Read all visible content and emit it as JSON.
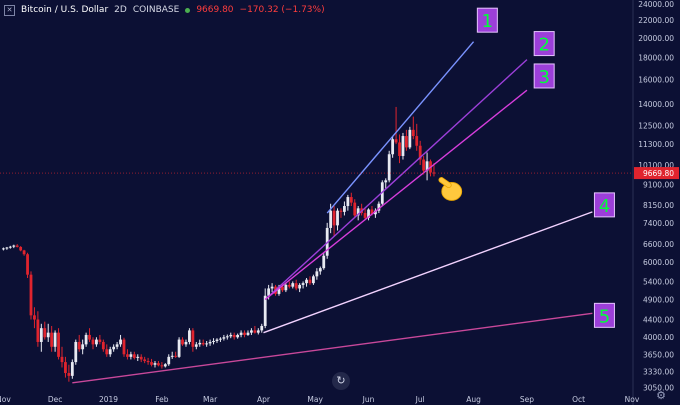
{
  "header": {
    "symbol": "Bitcoin / U.S. Dollar",
    "interval": "2D",
    "exchange": "COINBASE",
    "price": "9669.80",
    "change": "−170.32 (−1.73%)"
  },
  "colors": {
    "background": "#0c1034",
    "up": "#e8eaf2",
    "down": "#e0242e",
    "axis_text": "#c6cbe0",
    "price_tag": "#e0242e",
    "fan1": "#7a93ff",
    "fan2": "#9c3fd9",
    "fan3": "#d63ddb",
    "fan4": "#f2d2ff",
    "fan5": "#c9489a",
    "label_bg": "#9c3fd9",
    "label_text": "#00ff3a",
    "hand": "#ffc83d"
  },
  "chart_data": {
    "type": "candlestick",
    "title": "Bitcoin / U.S. Dollar 2D COINBASE",
    "yscale": "log",
    "ylim": [
      2980,
      24000
    ],
    "y_ticks": [
      24000,
      22000,
      20000,
      18000,
      16000,
      14000,
      12500,
      11300,
      10100,
      9100,
      8150,
      7400,
      6600,
      6000,
      5400,
      4900,
      4400,
      4000,
      3650,
      3330,
      3050
    ],
    "x_ticks": [
      {
        "label": "Nov",
        "day": 0
      },
      {
        "label": "Dec",
        "day": 30
      },
      {
        "label": "2019",
        "day": 61
      },
      {
        "label": "Feb",
        "day": 92
      },
      {
        "label": "Mar",
        "day": 120
      },
      {
        "label": "Apr",
        "day": 151
      },
      {
        "label": "May",
        "day": 181
      },
      {
        "label": "Jun",
        "day": 212
      },
      {
        "label": "Jul",
        "day": 242
      },
      {
        "label": "Aug",
        "day": 273
      },
      {
        "label": "Sep",
        "day": 304
      },
      {
        "label": "Oct",
        "day": 334
      },
      {
        "label": "Nov",
        "day": 365
      }
    ],
    "xlim": [
      -2,
      365
    ],
    "last_price": 9669.8,
    "candles": [
      {
        "day": 0,
        "o": 6420,
        "h": 6480,
        "l": 6380,
        "c": 6450
      },
      {
        "day": 2,
        "o": 6450,
        "h": 6500,
        "l": 6400,
        "c": 6480
      },
      {
        "day": 4,
        "o": 6480,
        "h": 6540,
        "l": 6440,
        "c": 6510
      },
      {
        "day": 6,
        "o": 6510,
        "h": 6580,
        "l": 6460,
        "c": 6550
      },
      {
        "day": 8,
        "o": 6550,
        "h": 6600,
        "l": 6480,
        "c": 6500
      },
      {
        "day": 10,
        "o": 6500,
        "h": 6530,
        "l": 6350,
        "c": 6380
      },
      {
        "day": 12,
        "o": 6380,
        "h": 6400,
        "l": 6200,
        "c": 6250
      },
      {
        "day": 14,
        "o": 6250,
        "h": 6300,
        "l": 5500,
        "c": 5600
      },
      {
        "day": 16,
        "o": 5600,
        "h": 5700,
        "l": 4400,
        "c": 4500
      },
      {
        "day": 18,
        "o": 4500,
        "h": 4700,
        "l": 4200,
        "c": 4400
      },
      {
        "day": 20,
        "o": 4400,
        "h": 4600,
        "l": 3800,
        "c": 3900
      },
      {
        "day": 22,
        "o": 3900,
        "h": 4300,
        "l": 3700,
        "c": 4200
      },
      {
        "day": 24,
        "o": 4200,
        "h": 4350,
        "l": 3950,
        "c": 4000
      },
      {
        "day": 26,
        "o": 4000,
        "h": 4300,
        "l": 3900,
        "c": 4100
      },
      {
        "day": 28,
        "o": 4100,
        "h": 4250,
        "l": 3700,
        "c": 3800
      },
      {
        "day": 30,
        "o": 3800,
        "h": 4150,
        "l": 3700,
        "c": 4100
      },
      {
        "day": 32,
        "o": 4100,
        "h": 4200,
        "l": 3550,
        "c": 3600
      },
      {
        "day": 34,
        "o": 3600,
        "h": 3800,
        "l": 3400,
        "c": 3500
      },
      {
        "day": 36,
        "o": 3500,
        "h": 3600,
        "l": 3220,
        "c": 3300
      },
      {
        "day": 38,
        "o": 3300,
        "h": 3450,
        "l": 3150,
        "c": 3250
      },
      {
        "day": 40,
        "o": 3250,
        "h": 3550,
        "l": 3200,
        "c": 3500
      },
      {
        "day": 42,
        "o": 3500,
        "h": 3950,
        "l": 3450,
        "c": 3900
      },
      {
        "day": 44,
        "o": 3900,
        "h": 4050,
        "l": 3700,
        "c": 3750
      },
      {
        "day": 46,
        "o": 3750,
        "h": 3950,
        "l": 3650,
        "c": 3850
      },
      {
        "day": 48,
        "o": 3850,
        "h": 4100,
        "l": 3800,
        "c": 4050
      },
      {
        "day": 50,
        "o": 4050,
        "h": 4200,
        "l": 3900,
        "c": 3950
      },
      {
        "day": 52,
        "o": 3950,
        "h": 4000,
        "l": 3750,
        "c": 3850
      },
      {
        "day": 54,
        "o": 3850,
        "h": 4000,
        "l": 3800,
        "c": 3950
      },
      {
        "day": 56,
        "o": 3950,
        "h": 4050,
        "l": 3850,
        "c": 3900
      },
      {
        "day": 58,
        "o": 3900,
        "h": 3950,
        "l": 3700,
        "c": 3750
      },
      {
        "day": 60,
        "o": 3750,
        "h": 3850,
        "l": 3600,
        "c": 3650
      },
      {
        "day": 62,
        "o": 3650,
        "h": 3800,
        "l": 3600,
        "c": 3750
      },
      {
        "day": 64,
        "o": 3750,
        "h": 3850,
        "l": 3700,
        "c": 3800
      },
      {
        "day": 66,
        "o": 3800,
        "h": 3900,
        "l": 3750,
        "c": 3850
      },
      {
        "day": 68,
        "o": 3850,
        "h": 4050,
        "l": 3800,
        "c": 3950
      },
      {
        "day": 70,
        "o": 3950,
        "h": 3990,
        "l": 3600,
        "c": 3650
      },
      {
        "day": 72,
        "o": 3650,
        "h": 3750,
        "l": 3550,
        "c": 3600
      },
      {
        "day": 74,
        "o": 3600,
        "h": 3700,
        "l": 3550,
        "c": 3650
      },
      {
        "day": 76,
        "o": 3650,
        "h": 3700,
        "l": 3550,
        "c": 3580
      },
      {
        "day": 78,
        "o": 3580,
        "h": 3650,
        "l": 3520,
        "c": 3600
      },
      {
        "day": 80,
        "o": 3600,
        "h": 3650,
        "l": 3500,
        "c": 3550
      },
      {
        "day": 82,
        "o": 3550,
        "h": 3600,
        "l": 3480,
        "c": 3520
      },
      {
        "day": 84,
        "o": 3520,
        "h": 3580,
        "l": 3450,
        "c": 3500
      },
      {
        "day": 86,
        "o": 3500,
        "h": 3560,
        "l": 3420,
        "c": 3450
      },
      {
        "day": 88,
        "o": 3450,
        "h": 3520,
        "l": 3400,
        "c": 3480
      },
      {
        "day": 90,
        "o": 3480,
        "h": 3520,
        "l": 3420,
        "c": 3440
      },
      {
        "day": 92,
        "o": 3440,
        "h": 3500,
        "l": 3380,
        "c": 3420
      },
      {
        "day": 94,
        "o": 3420,
        "h": 3480,
        "l": 3400,
        "c": 3460
      },
      {
        "day": 96,
        "o": 3460,
        "h": 3650,
        "l": 3430,
        "c": 3600
      },
      {
        "day": 98,
        "o": 3600,
        "h": 3700,
        "l": 3560,
        "c": 3620
      },
      {
        "day": 100,
        "o": 3620,
        "h": 3700,
        "l": 3580,
        "c": 3600
      },
      {
        "day": 102,
        "o": 3600,
        "h": 4000,
        "l": 3580,
        "c": 3950
      },
      {
        "day": 104,
        "o": 3950,
        "h": 4000,
        "l": 3820,
        "c": 3850
      },
      {
        "day": 106,
        "o": 3850,
        "h": 3950,
        "l": 3800,
        "c": 3900
      },
      {
        "day": 108,
        "o": 3900,
        "h": 4200,
        "l": 3850,
        "c": 4150
      },
      {
        "day": 110,
        "o": 4150,
        "h": 4200,
        "l": 3700,
        "c": 3800
      },
      {
        "day": 112,
        "o": 3800,
        "h": 3900,
        "l": 3750,
        "c": 3850
      },
      {
        "day": 114,
        "o": 3850,
        "h": 3950,
        "l": 3800,
        "c": 3880
      },
      {
        "day": 116,
        "o": 3880,
        "h": 3950,
        "l": 3820,
        "c": 3850
      },
      {
        "day": 118,
        "o": 3850,
        "h": 3920,
        "l": 3800,
        "c": 3870
      },
      {
        "day": 120,
        "o": 3870,
        "h": 3950,
        "l": 3820,
        "c": 3900
      },
      {
        "day": 122,
        "o": 3900,
        "h": 3980,
        "l": 3850,
        "c": 3920
      },
      {
        "day": 124,
        "o": 3920,
        "h": 3980,
        "l": 3880,
        "c": 3950
      },
      {
        "day": 126,
        "o": 3950,
        "h": 4000,
        "l": 3900,
        "c": 3970
      },
      {
        "day": 128,
        "o": 3970,
        "h": 4050,
        "l": 3930,
        "c": 4000
      },
      {
        "day": 130,
        "o": 4000,
        "h": 4060,
        "l": 3950,
        "c": 4020
      },
      {
        "day": 132,
        "o": 4020,
        "h": 4100,
        "l": 3980,
        "c": 4050
      },
      {
        "day": 134,
        "o": 4050,
        "h": 4100,
        "l": 3950,
        "c": 4000
      },
      {
        "day": 136,
        "o": 4000,
        "h": 4080,
        "l": 3970,
        "c": 4050
      },
      {
        "day": 138,
        "o": 4050,
        "h": 4150,
        "l": 4000,
        "c": 4100
      },
      {
        "day": 140,
        "o": 4100,
        "h": 4150,
        "l": 4000,
        "c": 4050
      },
      {
        "day": 142,
        "o": 4050,
        "h": 4150,
        "l": 4030,
        "c": 4100
      },
      {
        "day": 144,
        "o": 4100,
        "h": 4200,
        "l": 4050,
        "c": 4150
      },
      {
        "day": 146,
        "o": 4150,
        "h": 4250,
        "l": 4080,
        "c": 4100
      },
      {
        "day": 148,
        "o": 4100,
        "h": 4200,
        "l": 4060,
        "c": 4150
      },
      {
        "day": 150,
        "o": 4150,
        "h": 4300,
        "l": 4100,
        "c": 4250
      },
      {
        "day": 152,
        "o": 4250,
        "h": 5200,
        "l": 4200,
        "c": 5000
      },
      {
        "day": 154,
        "o": 5000,
        "h": 5300,
        "l": 4900,
        "c": 5200
      },
      {
        "day": 156,
        "o": 5200,
        "h": 5350,
        "l": 5100,
        "c": 5250
      },
      {
        "day": 158,
        "o": 5250,
        "h": 5300,
        "l": 5000,
        "c": 5050
      },
      {
        "day": 160,
        "o": 5050,
        "h": 5300,
        "l": 5000,
        "c": 5250
      },
      {
        "day": 162,
        "o": 5250,
        "h": 5350,
        "l": 5100,
        "c": 5150
      },
      {
        "day": 164,
        "o": 5150,
        "h": 5350,
        "l": 5100,
        "c": 5300
      },
      {
        "day": 166,
        "o": 5300,
        "h": 5400,
        "l": 5200,
        "c": 5250
      },
      {
        "day": 168,
        "o": 5250,
        "h": 5400,
        "l": 5200,
        "c": 5350
      },
      {
        "day": 170,
        "o": 5350,
        "h": 5450,
        "l": 5150,
        "c": 5200
      },
      {
        "day": 172,
        "o": 5200,
        "h": 5350,
        "l": 5100,
        "c": 5300
      },
      {
        "day": 174,
        "o": 5300,
        "h": 5400,
        "l": 5200,
        "c": 5350
      },
      {
        "day": 176,
        "o": 5350,
        "h": 5500,
        "l": 5250,
        "c": 5450
      },
      {
        "day": 178,
        "o": 5450,
        "h": 5550,
        "l": 5300,
        "c": 5350
      },
      {
        "day": 180,
        "o": 5350,
        "h": 5600,
        "l": 5300,
        "c": 5550
      },
      {
        "day": 182,
        "o": 5550,
        "h": 5800,
        "l": 5450,
        "c": 5700
      },
      {
        "day": 184,
        "o": 5700,
        "h": 5850,
        "l": 5600,
        "c": 5800
      },
      {
        "day": 186,
        "o": 5800,
        "h": 6300,
        "l": 5750,
        "c": 6200
      },
      {
        "day": 188,
        "o": 6200,
        "h": 7400,
        "l": 6100,
        "c": 7200
      },
      {
        "day": 190,
        "o": 7200,
        "h": 8200,
        "l": 7000,
        "c": 7900
      },
      {
        "day": 192,
        "o": 7900,
        "h": 8100,
        "l": 6900,
        "c": 7300
      },
      {
        "day": 194,
        "o": 7300,
        "h": 8000,
        "l": 7100,
        "c": 7900
      },
      {
        "day": 196,
        "o": 7900,
        "h": 8000,
        "l": 7600,
        "c": 7850
      },
      {
        "day": 198,
        "o": 7850,
        "h": 8300,
        "l": 7700,
        "c": 8100
      },
      {
        "day": 200,
        "o": 8100,
        "h": 8600,
        "l": 7900,
        "c": 8500
      },
      {
        "day": 202,
        "o": 8500,
        "h": 8700,
        "l": 8100,
        "c": 8250
      },
      {
        "day": 204,
        "o": 8250,
        "h": 8400,
        "l": 7600,
        "c": 7700
      },
      {
        "day": 206,
        "o": 7700,
        "h": 8100,
        "l": 7500,
        "c": 8000
      },
      {
        "day": 208,
        "o": 8000,
        "h": 8200,
        "l": 7700,
        "c": 7800
      },
      {
        "day": 210,
        "o": 7800,
        "h": 8000,
        "l": 7500,
        "c": 7600
      },
      {
        "day": 212,
        "o": 7600,
        "h": 8000,
        "l": 7500,
        "c": 7950
      },
      {
        "day": 214,
        "o": 7950,
        "h": 8100,
        "l": 7700,
        "c": 7750
      },
      {
        "day": 216,
        "o": 7750,
        "h": 8000,
        "l": 7600,
        "c": 7900
      },
      {
        "day": 218,
        "o": 7900,
        "h": 8300,
        "l": 7800,
        "c": 8200
      },
      {
        "day": 220,
        "o": 8200,
        "h": 9300,
        "l": 8100,
        "c": 9200
      },
      {
        "day": 222,
        "o": 9200,
        "h": 9400,
        "l": 8900,
        "c": 9300
      },
      {
        "day": 224,
        "o": 9300,
        "h": 10900,
        "l": 9200,
        "c": 10700
      },
      {
        "day": 226,
        "o": 10700,
        "h": 11800,
        "l": 10500,
        "c": 11600
      },
      {
        "day": 228,
        "o": 11600,
        "h": 13800,
        "l": 11300,
        "c": 11400
      },
      {
        "day": 230,
        "o": 11400,
        "h": 11900,
        "l": 10200,
        "c": 10600
      },
      {
        "day": 232,
        "o": 10600,
        "h": 12000,
        "l": 10400,
        "c": 11800
      },
      {
        "day": 234,
        "o": 11800,
        "h": 12200,
        "l": 10900,
        "c": 11100
      },
      {
        "day": 236,
        "o": 11100,
        "h": 12400,
        "l": 11000,
        "c": 12200
      },
      {
        "day": 238,
        "o": 12200,
        "h": 13100,
        "l": 11600,
        "c": 11800
      },
      {
        "day": 240,
        "o": 11800,
        "h": 12600,
        "l": 10900,
        "c": 11200
      },
      {
        "day": 242,
        "o": 11200,
        "h": 11500,
        "l": 10100,
        "c": 10400
      },
      {
        "day": 244,
        "o": 10400,
        "h": 10600,
        "l": 9600,
        "c": 9800
      },
      {
        "day": 246,
        "o": 9800,
        "h": 10800,
        "l": 9300,
        "c": 10300
      },
      {
        "day": 248,
        "o": 10300,
        "h": 10400,
        "l": 9500,
        "c": 9700
      },
      {
        "day": 250,
        "o": 9700,
        "h": 10200,
        "l": 9500,
        "c": 9670
      }
    ],
    "fan_lines": [
      {
        "id": "1",
        "start": {
          "day": 188,
          "price": 7800
        },
        "end": {
          "day": 273,
          "price": 19600
        }
      },
      {
        "id": "2",
        "start": {
          "day": 152,
          "price": 4900
        },
        "end": {
          "day": 304,
          "price": 17800
        }
      },
      {
        "id": "3",
        "start": {
          "day": 152,
          "price": 4900
        },
        "end": {
          "day": 304,
          "price": 15100
        }
      },
      {
        "id": "4",
        "start": {
          "day": 151,
          "price": 4100
        },
        "end": {
          "day": 342,
          "price": 7850
        }
      },
      {
        "id": "5",
        "start": {
          "day": 40,
          "price": 3130
        },
        "end": {
          "day": 342,
          "price": 4550
        }
      }
    ]
  },
  "labels": [
    {
      "text": "1",
      "day": 281,
      "price": 22000
    },
    {
      "text": "2",
      "day": 314,
      "price": 19400
    },
    {
      "text": "3",
      "day": 314,
      "price": 16300
    },
    {
      "text": "4",
      "day": 349,
      "price": 8150
    },
    {
      "text": "5",
      "day": 349,
      "price": 4500
    }
  ],
  "controls": {
    "close_icon": "x-icon",
    "reset_icon": "refresh-icon",
    "settings_icon": "gear-icon"
  }
}
